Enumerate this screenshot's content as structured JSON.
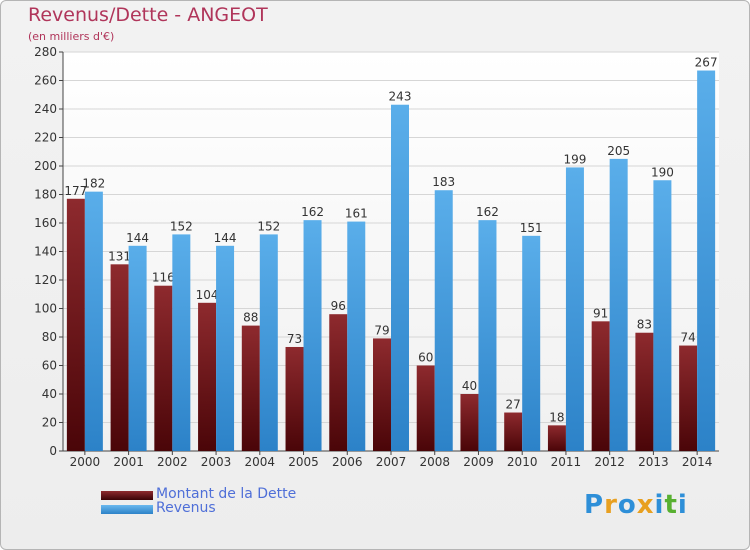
{
  "chart_data": {
    "type": "bar",
    "title": "Revenus/Dette - ANGEOT",
    "subtitle": "(en milliers d'€)",
    "categories": [
      "2000",
      "2001",
      "2002",
      "2003",
      "2004",
      "2005",
      "2006",
      "2007",
      "2008",
      "2009",
      "2010",
      "2011",
      "2012",
      "2013",
      "2014"
    ],
    "series": [
      {
        "name": "Montant de la Dette",
        "color": "#7a1a1f",
        "values": [
          177,
          131,
          116,
          104,
          88,
          73,
          96,
          79,
          60,
          40,
          27,
          18,
          91,
          83,
          74
        ]
      },
      {
        "name": "Revenus",
        "color": "#3d9be0",
        "values": [
          182,
          144,
          152,
          144,
          152,
          162,
          161,
          243,
          183,
          162,
          151,
          199,
          205,
          190,
          267
        ]
      }
    ],
    "ylim": [
      0,
      280
    ],
    "yticks": [
      0,
      20,
      40,
      60,
      80,
      100,
      120,
      140,
      160,
      180,
      200,
      220,
      240,
      260,
      280
    ],
    "grid": true,
    "legend_position": "bottom-left"
  },
  "logo": {
    "text": "Proxiti",
    "letters": [
      "P",
      "r",
      "o",
      "x",
      "i",
      "t",
      "i"
    ],
    "colors": [
      "#2e8fd8",
      "#e8a020",
      "#2e8fd8",
      "#e8a020",
      "#2e8fd8",
      "#58b030",
      "#2e8fd8"
    ]
  }
}
